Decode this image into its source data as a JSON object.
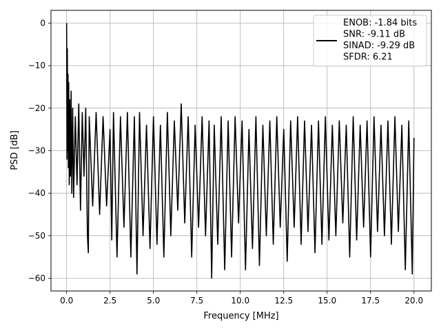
{
  "chart_data": {
    "type": "line",
    "title": "",
    "xlabel": "Frequency [MHz]",
    "ylabel": "PSD [dB]",
    "xlim": [
      -0.9,
      21.0
    ],
    "ylim": [
      -63.0,
      3.0
    ],
    "xticks": [
      0.0,
      2.5,
      5.0,
      7.5,
      10.0,
      12.5,
      15.0,
      17.5,
      20.0
    ],
    "xtick_labels": [
      "0.0",
      "2.5",
      "5.0",
      "7.5",
      "10.0",
      "12.5",
      "15.0",
      "17.5",
      "20.0"
    ],
    "yticks": [
      0,
      -10,
      -20,
      -30,
      -40,
      -50,
      -60
    ],
    "ytick_labels": [
      "0",
      "−10",
      "−20",
      "−30",
      "−40",
      "−50",
      "−60"
    ],
    "grid": true,
    "legend_position": "top-right",
    "series": [
      {
        "name": "ENOB: -1.84 bits\nSNR: -9.11 dB\nSINAD: -9.29 dB\nSFDR: 6.21",
        "color": "#000000",
        "x": [
          0.0,
          0.02,
          0.04,
          0.06,
          0.08,
          0.1,
          0.12,
          0.15,
          0.18,
          0.22,
          0.26,
          0.3,
          0.35,
          0.4,
          0.5,
          0.6,
          0.7,
          0.8,
          0.9,
          1.0,
          1.1,
          1.2,
          1.25,
          1.3,
          1.5,
          1.7,
          1.9,
          2.1,
          2.3,
          2.5,
          2.6,
          2.7,
          2.9,
          3.1,
          3.3,
          3.5,
          3.7,
          3.9,
          4.05,
          4.2,
          4.4,
          4.6,
          4.8,
          5.0,
          5.2,
          5.4,
          5.6,
          5.8,
          6.0,
          6.2,
          6.4,
          6.6,
          6.8,
          7.0,
          7.2,
          7.4,
          7.6,
          7.8,
          8.0,
          8.2,
          8.35,
          8.5,
          8.7,
          8.9,
          9.1,
          9.3,
          9.5,
          9.7,
          9.9,
          10.1,
          10.3,
          10.5,
          10.7,
          10.9,
          11.1,
          11.3,
          11.5,
          11.7,
          11.9,
          12.1,
          12.3,
          12.5,
          12.7,
          12.9,
          13.1,
          13.3,
          13.5,
          13.7,
          13.9,
          14.1,
          14.3,
          14.5,
          14.7,
          14.9,
          15.1,
          15.3,
          15.5,
          15.7,
          15.9,
          16.1,
          16.3,
          16.5,
          16.7,
          16.9,
          17.1,
          17.3,
          17.5,
          17.7,
          17.9,
          18.1,
          18.3,
          18.5,
          18.7,
          18.9,
          19.1,
          19.3,
          19.5,
          19.7,
          19.9,
          20.0
        ],
        "y": [
          0.0,
          -32.0,
          -6.0,
          -30.0,
          -12.0,
          -34.0,
          -14.0,
          -38.0,
          -18.0,
          -36.0,
          -16.0,
          -40.0,
          -20.0,
          -41.0,
          -22.0,
          -38.0,
          -19.0,
          -44.0,
          -21.0,
          -36.0,
          -20.0,
          -50.0,
          -54.0,
          -22.0,
          -43.0,
          -21.0,
          -45.0,
          -22.0,
          -43.0,
          -25.0,
          -51.0,
          -21.0,
          -55.0,
          -22.0,
          -48.0,
          -21.0,
          -55.0,
          -22.0,
          -59.0,
          -21.0,
          -50.0,
          -24.0,
          -53.0,
          -22.0,
          -52.0,
          -24.0,
          -55.0,
          -21.0,
          -50.0,
          -23.0,
          -44.0,
          -19.0,
          -47.0,
          -22.0,
          -55.0,
          -24.0,
          -48.0,
          -22.0,
          -50.0,
          -23.0,
          -60.0,
          -24.0,
          -52.0,
          -22.0,
          -58.0,
          -23.0,
          -55.0,
          -22.0,
          -47.0,
          -23.0,
          -58.0,
          -25.0,
          -53.0,
          -22.0,
          -57.0,
          -24.0,
          -50.0,
          -23.0,
          -52.0,
          -22.0,
          -48.0,
          -25.0,
          -56.0,
          -23.0,
          -48.0,
          -22.0,
          -52.0,
          -23.0,
          -49.0,
          -24.0,
          -54.0,
          -23.0,
          -52.0,
          -22.0,
          -51.0,
          -24.0,
          -50.0,
          -23.0,
          -47.0,
          -24.0,
          -55.0,
          -22.0,
          -51.0,
          -24.0,
          -48.0,
          -23.0,
          -55.0,
          -22.0,
          -49.0,
          -24.0,
          -50.0,
          -23.0,
          -52.0,
          -22.0,
          -49.0,
          -24.0,
          -58.0,
          -23.0,
          -59.0,
          -27.0
        ]
      }
    ]
  }
}
